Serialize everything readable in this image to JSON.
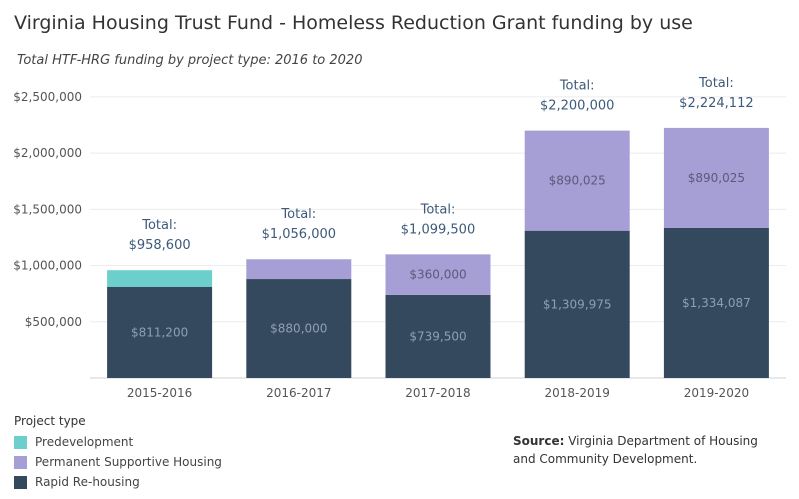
{
  "header": {
    "title": "Virginia Housing Trust Fund - Homeless Reduction Grant funding by use",
    "subtitle": "Total HTF-HRG funding by project type: 2016 to 2020"
  },
  "legend": {
    "title": "Project type",
    "items": [
      {
        "label": "Predevelopment",
        "color": "#6dcfcc"
      },
      {
        "label": "Permanent Supportive Housing",
        "color": "#a69fd6"
      },
      {
        "label": "Rapid Re-housing",
        "color": "#34495e"
      }
    ]
  },
  "source": {
    "label": "Source:",
    "text": "Virginia Department of Housing and Community Development."
  },
  "chart_data": {
    "type": "bar",
    "stacked": true,
    "categories": [
      "2015-2016",
      "2016-2017",
      "2017-2018",
      "2018-2019",
      "2019-2020"
    ],
    "series": [
      {
        "name": "Rapid Re-housing",
        "color": "#34495e",
        "values": [
          811200,
          880000,
          739500,
          1309975,
          1334087
        ],
        "labels": [
          "$811,200",
          "$880,000",
          "$739,500",
          "$1,309,975",
          "$1,334,087"
        ]
      },
      {
        "name": "Permanent Supportive Housing",
        "color": "#a69fd6",
        "values": [
          0,
          176000,
          360000,
          890025,
          890025
        ],
        "labels": [
          "",
          "",
          "$360,000",
          "$890,025",
          "$890,025"
        ]
      },
      {
        "name": "Predevelopment",
        "color": "#6dcfcc",
        "values": [
          147400,
          0,
          0,
          0,
          0
        ],
        "labels": [
          "",
          "",
          "",
          "",
          ""
        ]
      }
    ],
    "totals": {
      "prefix": "Total:",
      "labels": [
        "$958,600",
        "$1,056,000",
        "$1,099,500",
        "$2,200,000",
        "$2,224,112"
      ]
    },
    "y_ticks": [
      "$500,000",
      "$1,000,000",
      "$1,500,000",
      "$2,000,000",
      "$2,500,000"
    ],
    "y_tick_values": [
      500000,
      1000000,
      1500000,
      2000000,
      2500000
    ],
    "ylim": [
      0,
      2650000
    ],
    "grid": true
  }
}
